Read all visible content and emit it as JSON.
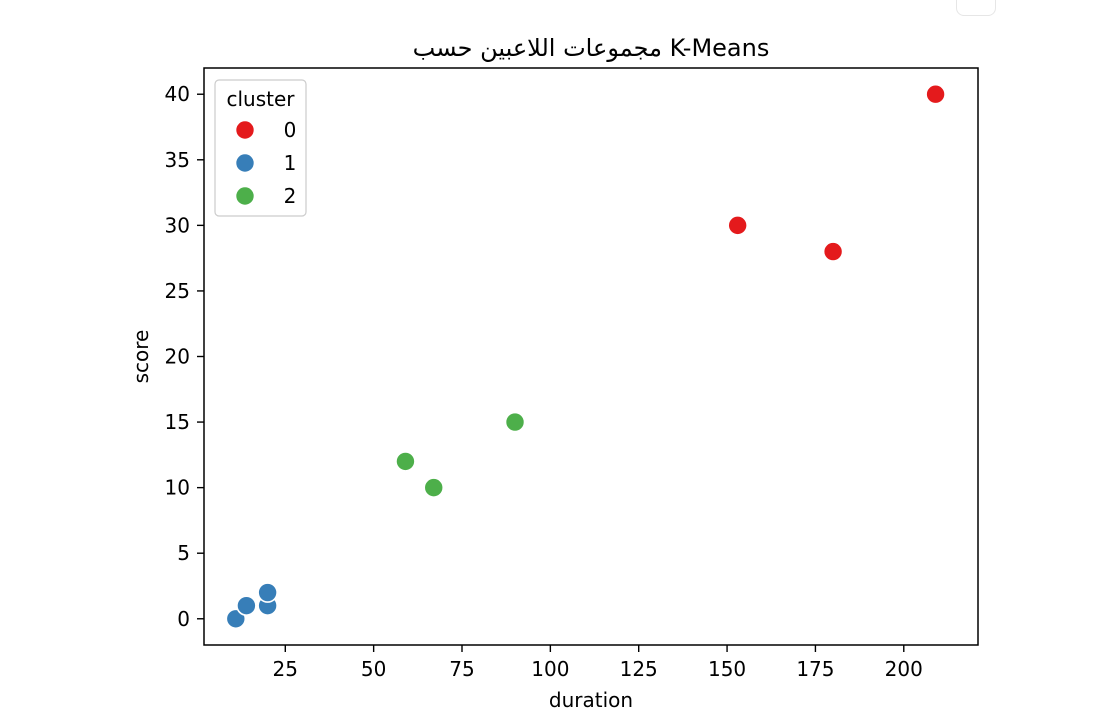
{
  "chart_data": {
    "type": "scatter",
    "title": "مجموعات اللاعبين حسب K-Means",
    "xlabel": "duration",
    "ylabel": "score",
    "xlim": [
      2,
      221
    ],
    "ylim": [
      -2,
      42
    ],
    "xticks": [
      25,
      50,
      75,
      100,
      125,
      150,
      175,
      200
    ],
    "yticks": [
      0,
      5,
      10,
      15,
      20,
      25,
      30,
      35,
      40
    ],
    "grid": false,
    "legend": {
      "title": "cluster",
      "position": "top-left"
    },
    "series": [
      {
        "name": "0",
        "color": "#e41a1c",
        "points": [
          [
            153,
            30
          ],
          [
            180,
            28
          ],
          [
            209,
            40
          ]
        ]
      },
      {
        "name": "1",
        "color": "#377eb8",
        "points": [
          [
            11,
            0
          ],
          [
            14,
            1
          ],
          [
            20,
            1
          ],
          [
            20,
            2
          ]
        ]
      },
      {
        "name": "2",
        "color": "#4daf4a",
        "points": [
          [
            59,
            12
          ],
          [
            67,
            10
          ],
          [
            90,
            15
          ]
        ]
      }
    ]
  }
}
